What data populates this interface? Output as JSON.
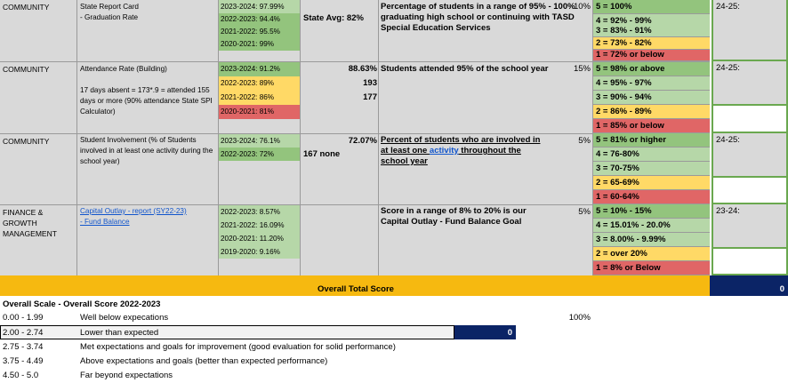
{
  "rows": [
    {
      "category": "COMMUNITY",
      "measure": "State Report Card\n- Graduation Rate",
      "years": [
        {
          "label": "2023-2024: 97.99%",
          "color": "#b6d7a8"
        },
        {
          "label": "2022-2023: 94.4%",
          "color": "#93c47d"
        },
        {
          "label": "2021-2022: 95.5%",
          "color": "#93c47d"
        },
        {
          "label": "2020-2021: 99%",
          "color": "#93c47d"
        }
      ],
      "extra": "State Avg:  82%",
      "value": "",
      "goal": "Percentage of students in a range of 95% - 100% graduating high school or continuing with TASD Special Education Services",
      "weight": "10%",
      "scale": [
        "5 = 100%",
        "4 = 92% - 99%",
        "3 = 83% - 91%",
        "2 = 73% - 82%",
        "1 = 72% or below"
      ],
      "target_label": "24-25:"
    },
    {
      "category": "COMMUNITY",
      "measure": "Attendance Rate (Building)",
      "measure_note": "17 days absent = 173*.9 = attended 155 days or more (90% attendance State SPI Calculator)",
      "years": [
        {
          "label": "2023-2024: 91.2%",
          "color": "#93c47d"
        },
        {
          "label": "2022-2023: 89%",
          "color": "#ffd966"
        },
        {
          "label": "2021-2022: 86%",
          "color": "#ffd966"
        },
        {
          "label": "2020-2021: 81%",
          "color": "#e06666"
        }
      ],
      "value": "88.63%",
      "value2": "193",
      "value3": "177",
      "goal": "Students attended 95% of the school year",
      "weight": "15%",
      "scale": [
        "5 = 98% or above",
        "4 = 95% - 97%",
        "3 = 90% - 94%",
        "2 = 86% - 89%",
        "1 = 85% or below"
      ],
      "target_label": "24-25:"
    },
    {
      "category": "COMMUNITY",
      "measure": "Student Involvement (% of Students involved in at least one activity during the school year)",
      "years": [
        {
          "label": "2023-2024: 76.1%",
          "color": "#b6d7a8"
        },
        {
          "label": "2022-2023: 72%",
          "color": "#93c47d"
        }
      ],
      "extra": "167 none",
      "value": "72.07%",
      "goal_pre": "Percent of students who are involved in at least one ",
      "goal_link": "activity",
      "goal_post": " throughout the school year",
      "weight": "5%",
      "scale": [
        "5 = 81% or higher",
        "4 = 76-80%",
        "3 = 70-75%",
        "2 = 65-69%",
        "1 = 60-64%"
      ],
      "target_label": "24-25:"
    },
    {
      "category": "FINANCE &\nGROWTH\nMANAGEMENT",
      "measure_link1": "Capital Outlay - report (SY22-23)",
      "measure_link2": "- Fund Balance",
      "years": [
        {
          "label": "2022-2023: 8.57%",
          "color": "#b6d7a8"
        },
        {
          "label": "2021-2022: 16.09%",
          "color": "#b6d7a8"
        },
        {
          "label": "2020-2021: 11.20%",
          "color": "#b6d7a8"
        },
        {
          "label": "2019-2020: 9.16%",
          "color": "#b6d7a8"
        }
      ],
      "value": "",
      "goal": "Score in a range of 8% to 20% is our Capital Outlay - Fund Balance Goal",
      "weight": "5%",
      "scale": [
        "5 = 10% - 15%",
        "4 = 15.01% - 20.0%",
        "3 = 8.00% - 9.99%",
        "2 = over 20%",
        "1 = 8% or Below"
      ],
      "target_label": "23-24:"
    }
  ],
  "total": {
    "label": "Overall Total Score",
    "value": "0"
  },
  "overall_scale": {
    "title": "Overall Scale - Overall Score 2022-2023",
    "percent": "100%",
    "score": "0",
    "items": [
      {
        "range": "0.00 - 1.99",
        "desc": "Well below expecations"
      },
      {
        "range": "2.00 - 2.74",
        "desc": "Lower than expected"
      },
      {
        "range": "2.75 - 3.74",
        "desc": "Met expectations and goals for improvement (good evaluation for solid performance)"
      },
      {
        "range": "3.75 - 4.49",
        "desc": "Above expectations and goals (better than expected performance)"
      },
      {
        "range": "4.50 - 5.0",
        "desc": "Far beyond expectations"
      }
    ]
  },
  "colors": {
    "grey": "#d9d9d9",
    "light_green": "#b6d7a8",
    "green": "#93c47d",
    "yellow": "#ffd966",
    "red": "#e06666",
    "orange": "#f6b910",
    "navy": "#0b2466"
  }
}
